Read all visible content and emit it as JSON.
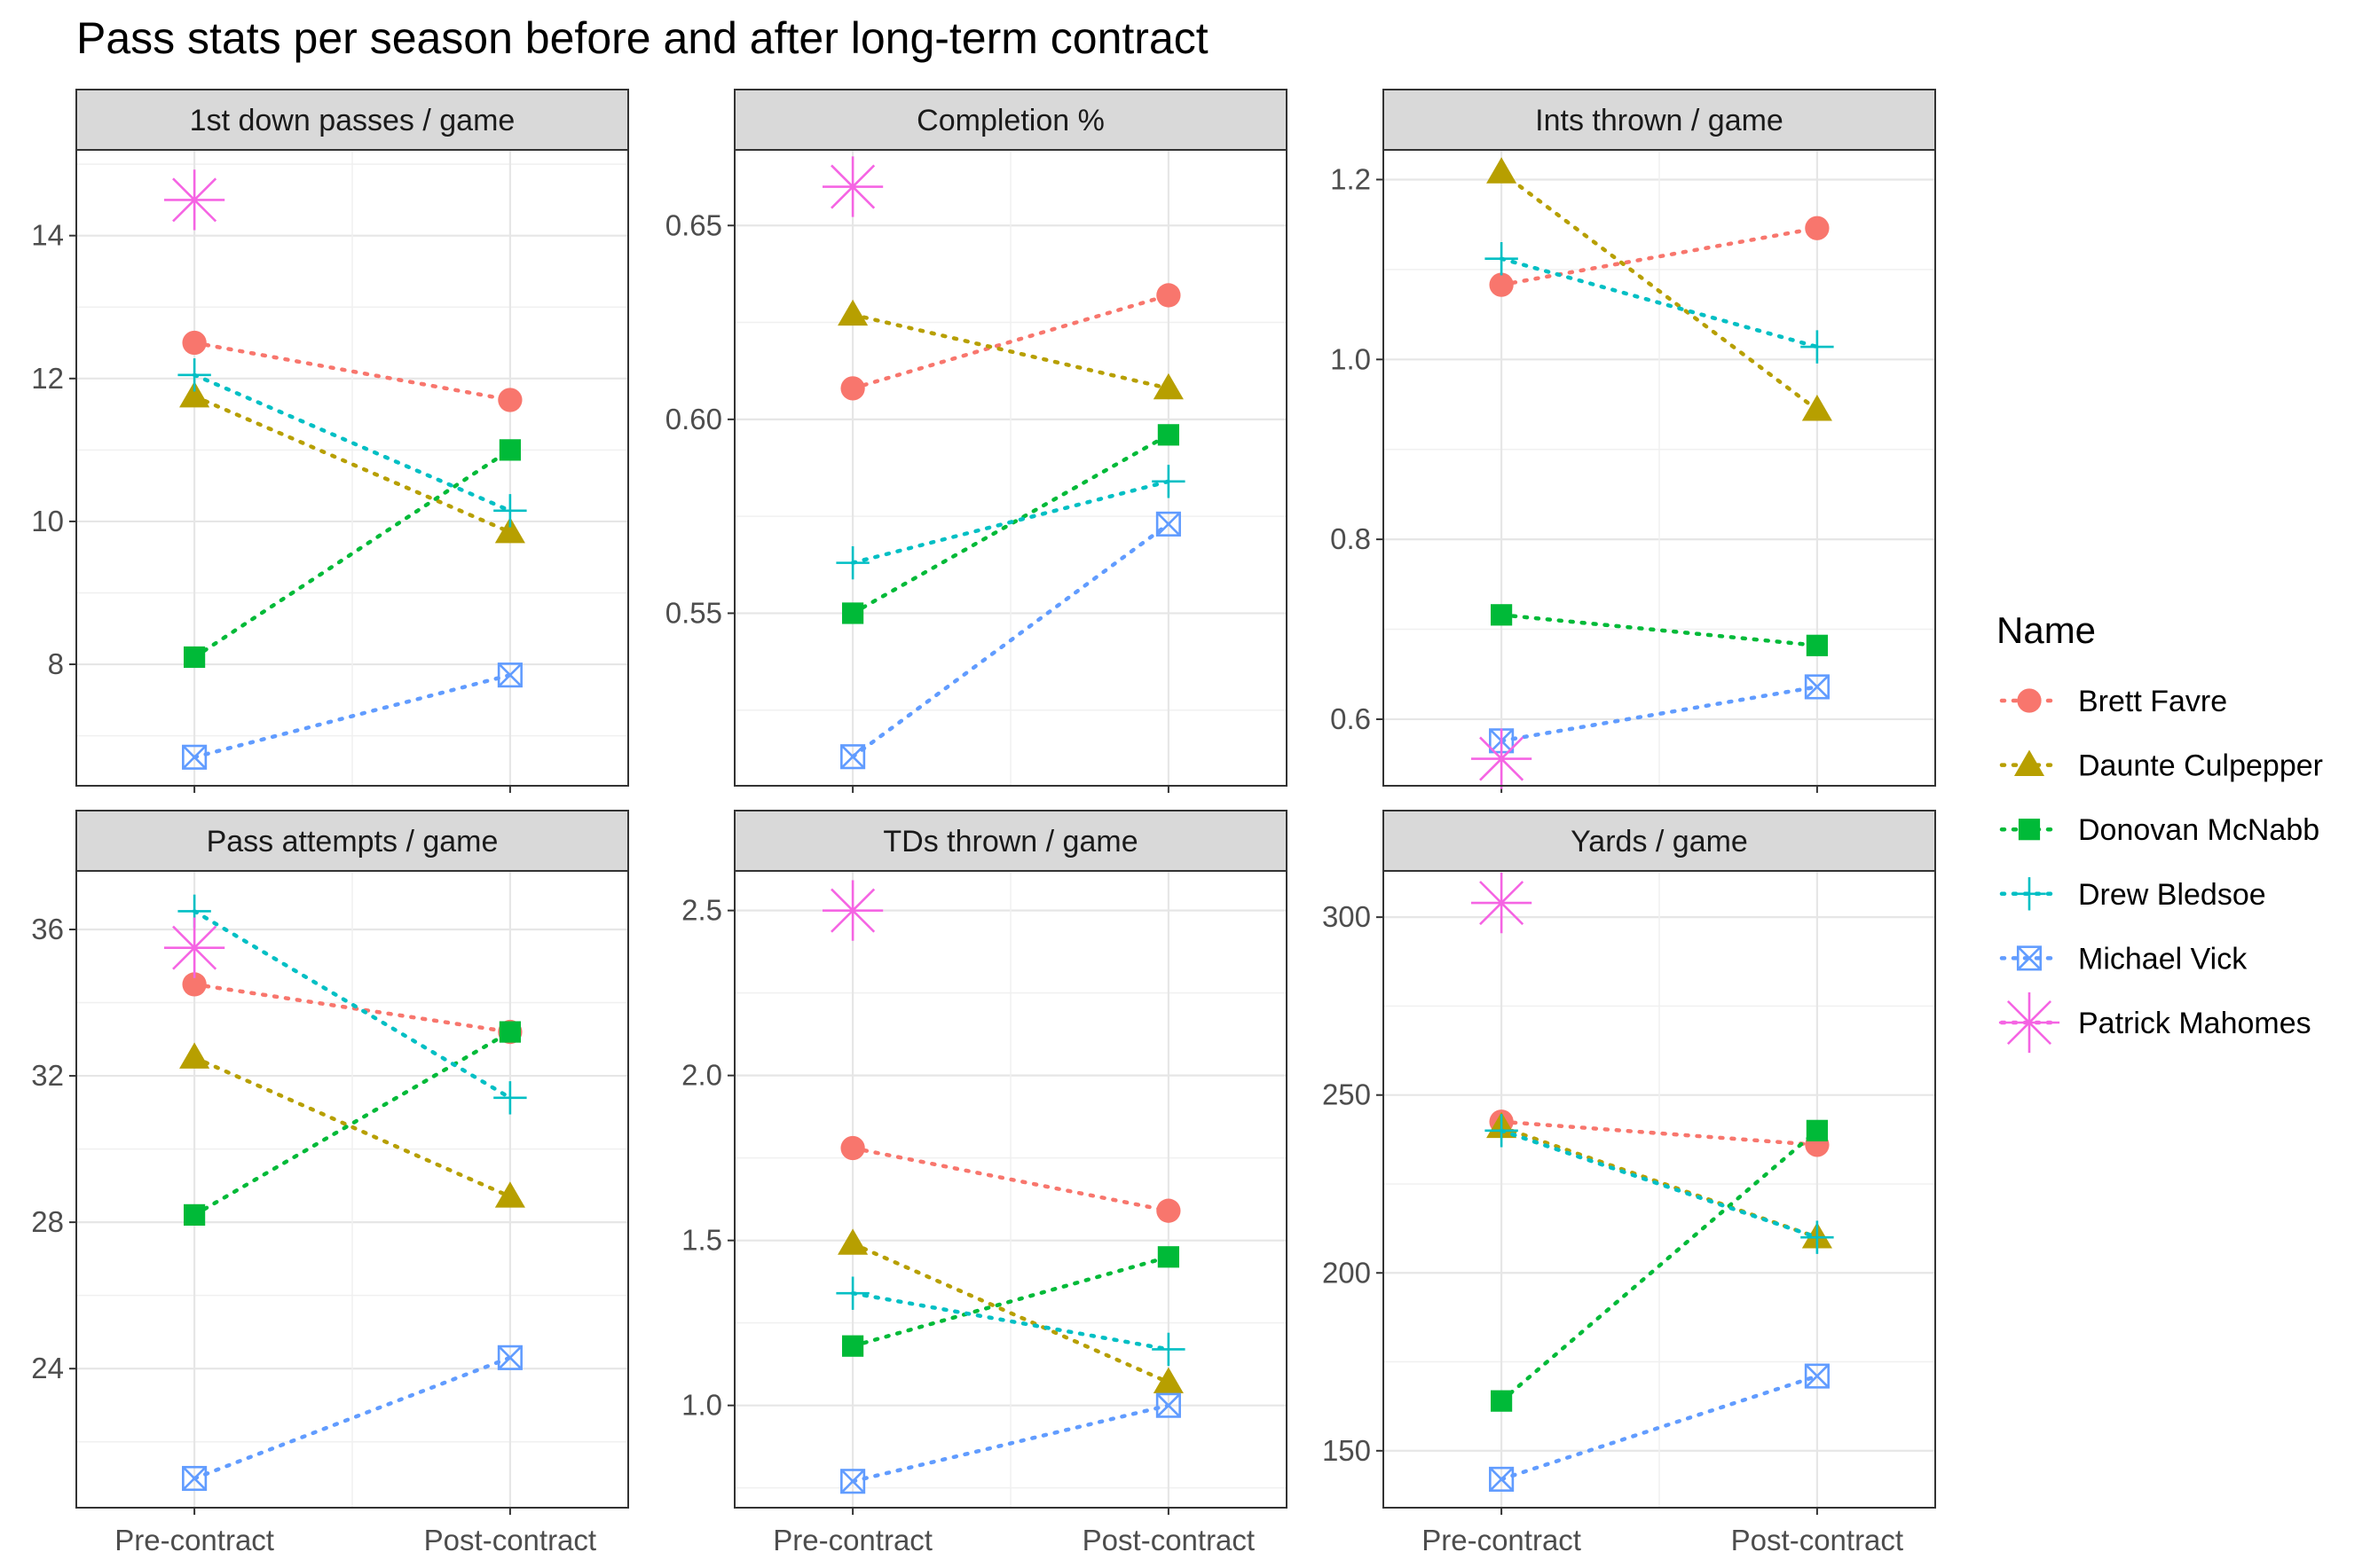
{
  "chart_data": {
    "type": "line",
    "title": "Pass stats per season before and after long-term contract",
    "categories": [
      "Pre-contract",
      "Post-contract"
    ],
    "legend": {
      "title": "Name",
      "placement": "right"
    },
    "series": [
      {
        "name": "Brett Favre",
        "color": "#F8766D",
        "shape": "circle"
      },
      {
        "name": "Daunte Culpepper",
        "color": "#B79F00",
        "shape": "triangle"
      },
      {
        "name": "Donovan McNabb",
        "color": "#00BA38",
        "shape": "square"
      },
      {
        "name": "Drew Bledsoe",
        "color": "#00BFC4",
        "shape": "plus"
      },
      {
        "name": "Michael Vick",
        "color": "#619CFF",
        "shape": "square-cross"
      },
      {
        "name": "Patrick Mahomes",
        "color": "#F564E3",
        "shape": "asterisk"
      }
    ],
    "panels": [
      {
        "label": "1st down passes / game",
        "ylim": [
          6.3,
          15.2
        ],
        "yticks": [
          8,
          10,
          12,
          14
        ],
        "tick_labels": [
          "8",
          "10",
          "12",
          "14"
        ],
        "values": {
          "Brett Favre": [
            12.5,
            11.7
          ],
          "Daunte Culpepper": [
            11.75,
            9.85
          ],
          "Donovan McNabb": [
            8.1,
            11.0
          ],
          "Drew Bledsoe": [
            12.05,
            10.15
          ],
          "Michael Vick": [
            6.7,
            7.85
          ],
          "Patrick Mahomes": [
            14.5,
            null
          ]
        }
      },
      {
        "label": "Completion %",
        "ylim": [
          0.5055,
          0.6695
        ],
        "yticks": [
          0.55,
          0.6,
          0.65
        ],
        "tick_labels": [
          "0.55",
          "0.60",
          "0.65"
        ],
        "values": {
          "Brett Favre": [
            0.608,
            0.632
          ],
          "Daunte Culpepper": [
            0.627,
            0.608
          ],
          "Donovan McNabb": [
            0.55,
            0.596
          ],
          "Drew Bledsoe": [
            0.563,
            0.584
          ],
          "Michael Vick": [
            0.513,
            0.573
          ],
          "Patrick Mahomes": [
            0.66,
            null
          ]
        }
      },
      {
        "label": "Ints thrown / game",
        "ylim": [
          0.526,
          1.233
        ],
        "yticks": [
          0.6,
          0.8,
          1.0,
          1.2
        ],
        "tick_labels": [
          "0.6",
          "0.8",
          "1.0",
          "1.2"
        ],
        "values": {
          "Brett Favre": [
            1.083,
            1.146
          ],
          "Daunte Culpepper": [
            1.208,
            0.944
          ],
          "Donovan McNabb": [
            0.716,
            0.682
          ],
          "Drew Bledsoe": [
            1.112,
            1.014
          ],
          "Michael Vick": [
            0.576,
            0.636
          ],
          "Patrick Mahomes": [
            0.556,
            null
          ]
        }
      },
      {
        "label": "Pass attempts / game",
        "ylim": [
          20.2,
          37.6
        ],
        "yticks": [
          24,
          28,
          32,
          36
        ],
        "tick_labels": [
          "24",
          "28",
          "32",
          "36"
        ],
        "values": {
          "Brett Favre": [
            34.5,
            33.2
          ],
          "Daunte Culpepper": [
            32.5,
            28.7
          ],
          "Donovan McNabb": [
            28.2,
            33.2
          ],
          "Drew Bledsoe": [
            36.5,
            31.4
          ],
          "Michael Vick": [
            21.0,
            24.3
          ],
          "Patrick Mahomes": [
            35.5,
            null
          ]
        }
      },
      {
        "label": "TDs thrown / game",
        "ylim": [
          0.69,
          2.62
        ],
        "yticks": [
          1.0,
          1.5,
          2.0,
          2.5
        ],
        "tick_labels": [
          "1.0",
          "1.5",
          "2.0",
          "2.5"
        ],
        "values": {
          "Brett Favre": [
            1.78,
            1.59
          ],
          "Daunte Culpepper": [
            1.49,
            1.07
          ],
          "Donovan McNabb": [
            1.18,
            1.45
          ],
          "Drew Bledsoe": [
            1.34,
            1.17
          ],
          "Michael Vick": [
            0.77,
            1.0
          ],
          "Patrick Mahomes": [
            2.5,
            null
          ]
        }
      },
      {
        "label": "Yards / game",
        "ylim": [
          134,
          313
        ],
        "yticks": [
          150,
          200,
          250,
          300
        ],
        "tick_labels": [
          "150",
          "200",
          "250",
          "300"
        ],
        "values": {
          "Brett Favre": [
            242.5,
            236.0
          ],
          "Daunte Culpepper": [
            241.0,
            210.0
          ],
          "Donovan McNabb": [
            164.0,
            240.0
          ],
          "Drew Bledsoe": [
            240.0,
            210.0
          ],
          "Michael Vick": [
            142.0,
            171.0
          ],
          "Patrick Mahomes": [
            304.0,
            null
          ]
        }
      }
    ]
  }
}
